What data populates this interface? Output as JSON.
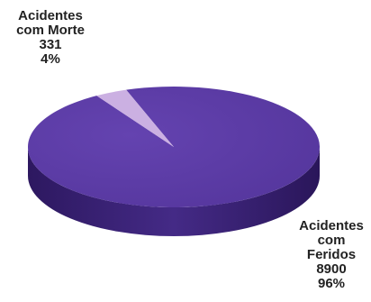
{
  "chart_data": {
    "type": "pie",
    "slices": [
      {
        "label_lines": [
          "Acidentes",
          "com Morte",
          "331",
          "4%"
        ],
        "value": 331,
        "percent": 4,
        "color": "#c7a9df"
      },
      {
        "label_lines": [
          "Acidentes",
          "com",
          "Feridos",
          "8900",
          "96%"
        ],
        "value": 8900,
        "percent": 96,
        "color": "#5b3aa6"
      }
    ],
    "colors": {
      "main_top": "#5b3aa6",
      "main_side": "#442a86",
      "main_side_dark": "#2d1860",
      "small_slice": "#c7a9df"
    }
  }
}
